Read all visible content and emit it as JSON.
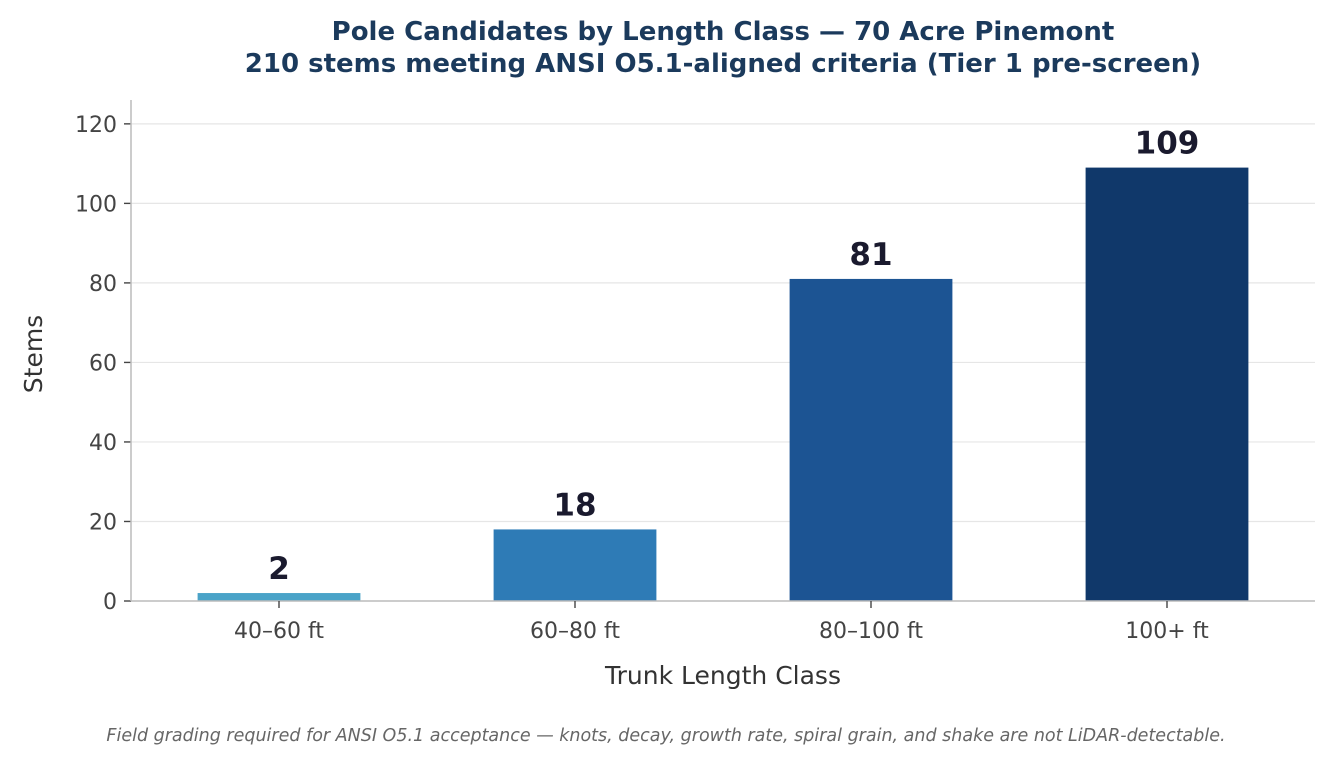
{
  "chart_data": {
    "type": "bar",
    "title": "Pole Candidates by Length Class — 70 Acre Pinemont",
    "subtitle": "210 stems meeting ANSI O5.1-aligned criteria (Tier 1 pre-screen)",
    "xlabel": "Trunk Length Class",
    "ylabel": "Stems",
    "categories": [
      "40–60 ft",
      "60–80 ft",
      "80–100 ft",
      "100+ ft"
    ],
    "values": [
      2,
      18,
      81,
      109
    ],
    "data_labels": [
      "2",
      "18",
      "81",
      "109"
    ],
    "bar_colors": [
      "#4aa3c8",
      "#2e7bb6",
      "#1c5493",
      "#10386a"
    ],
    "ylim": [
      0,
      126
    ],
    "yticks": [
      0,
      20,
      40,
      60,
      80,
      100,
      120
    ],
    "ytick_labels": [
      "0",
      "20",
      "40",
      "60",
      "80",
      "100",
      "120"
    ],
    "grid": "horizontal",
    "legend": "none",
    "footnote": "Field grading required for ANSI O5.1 acceptance — knots, decay, growth rate, spiral grain, and shake are not LiDAR-detectable."
  }
}
